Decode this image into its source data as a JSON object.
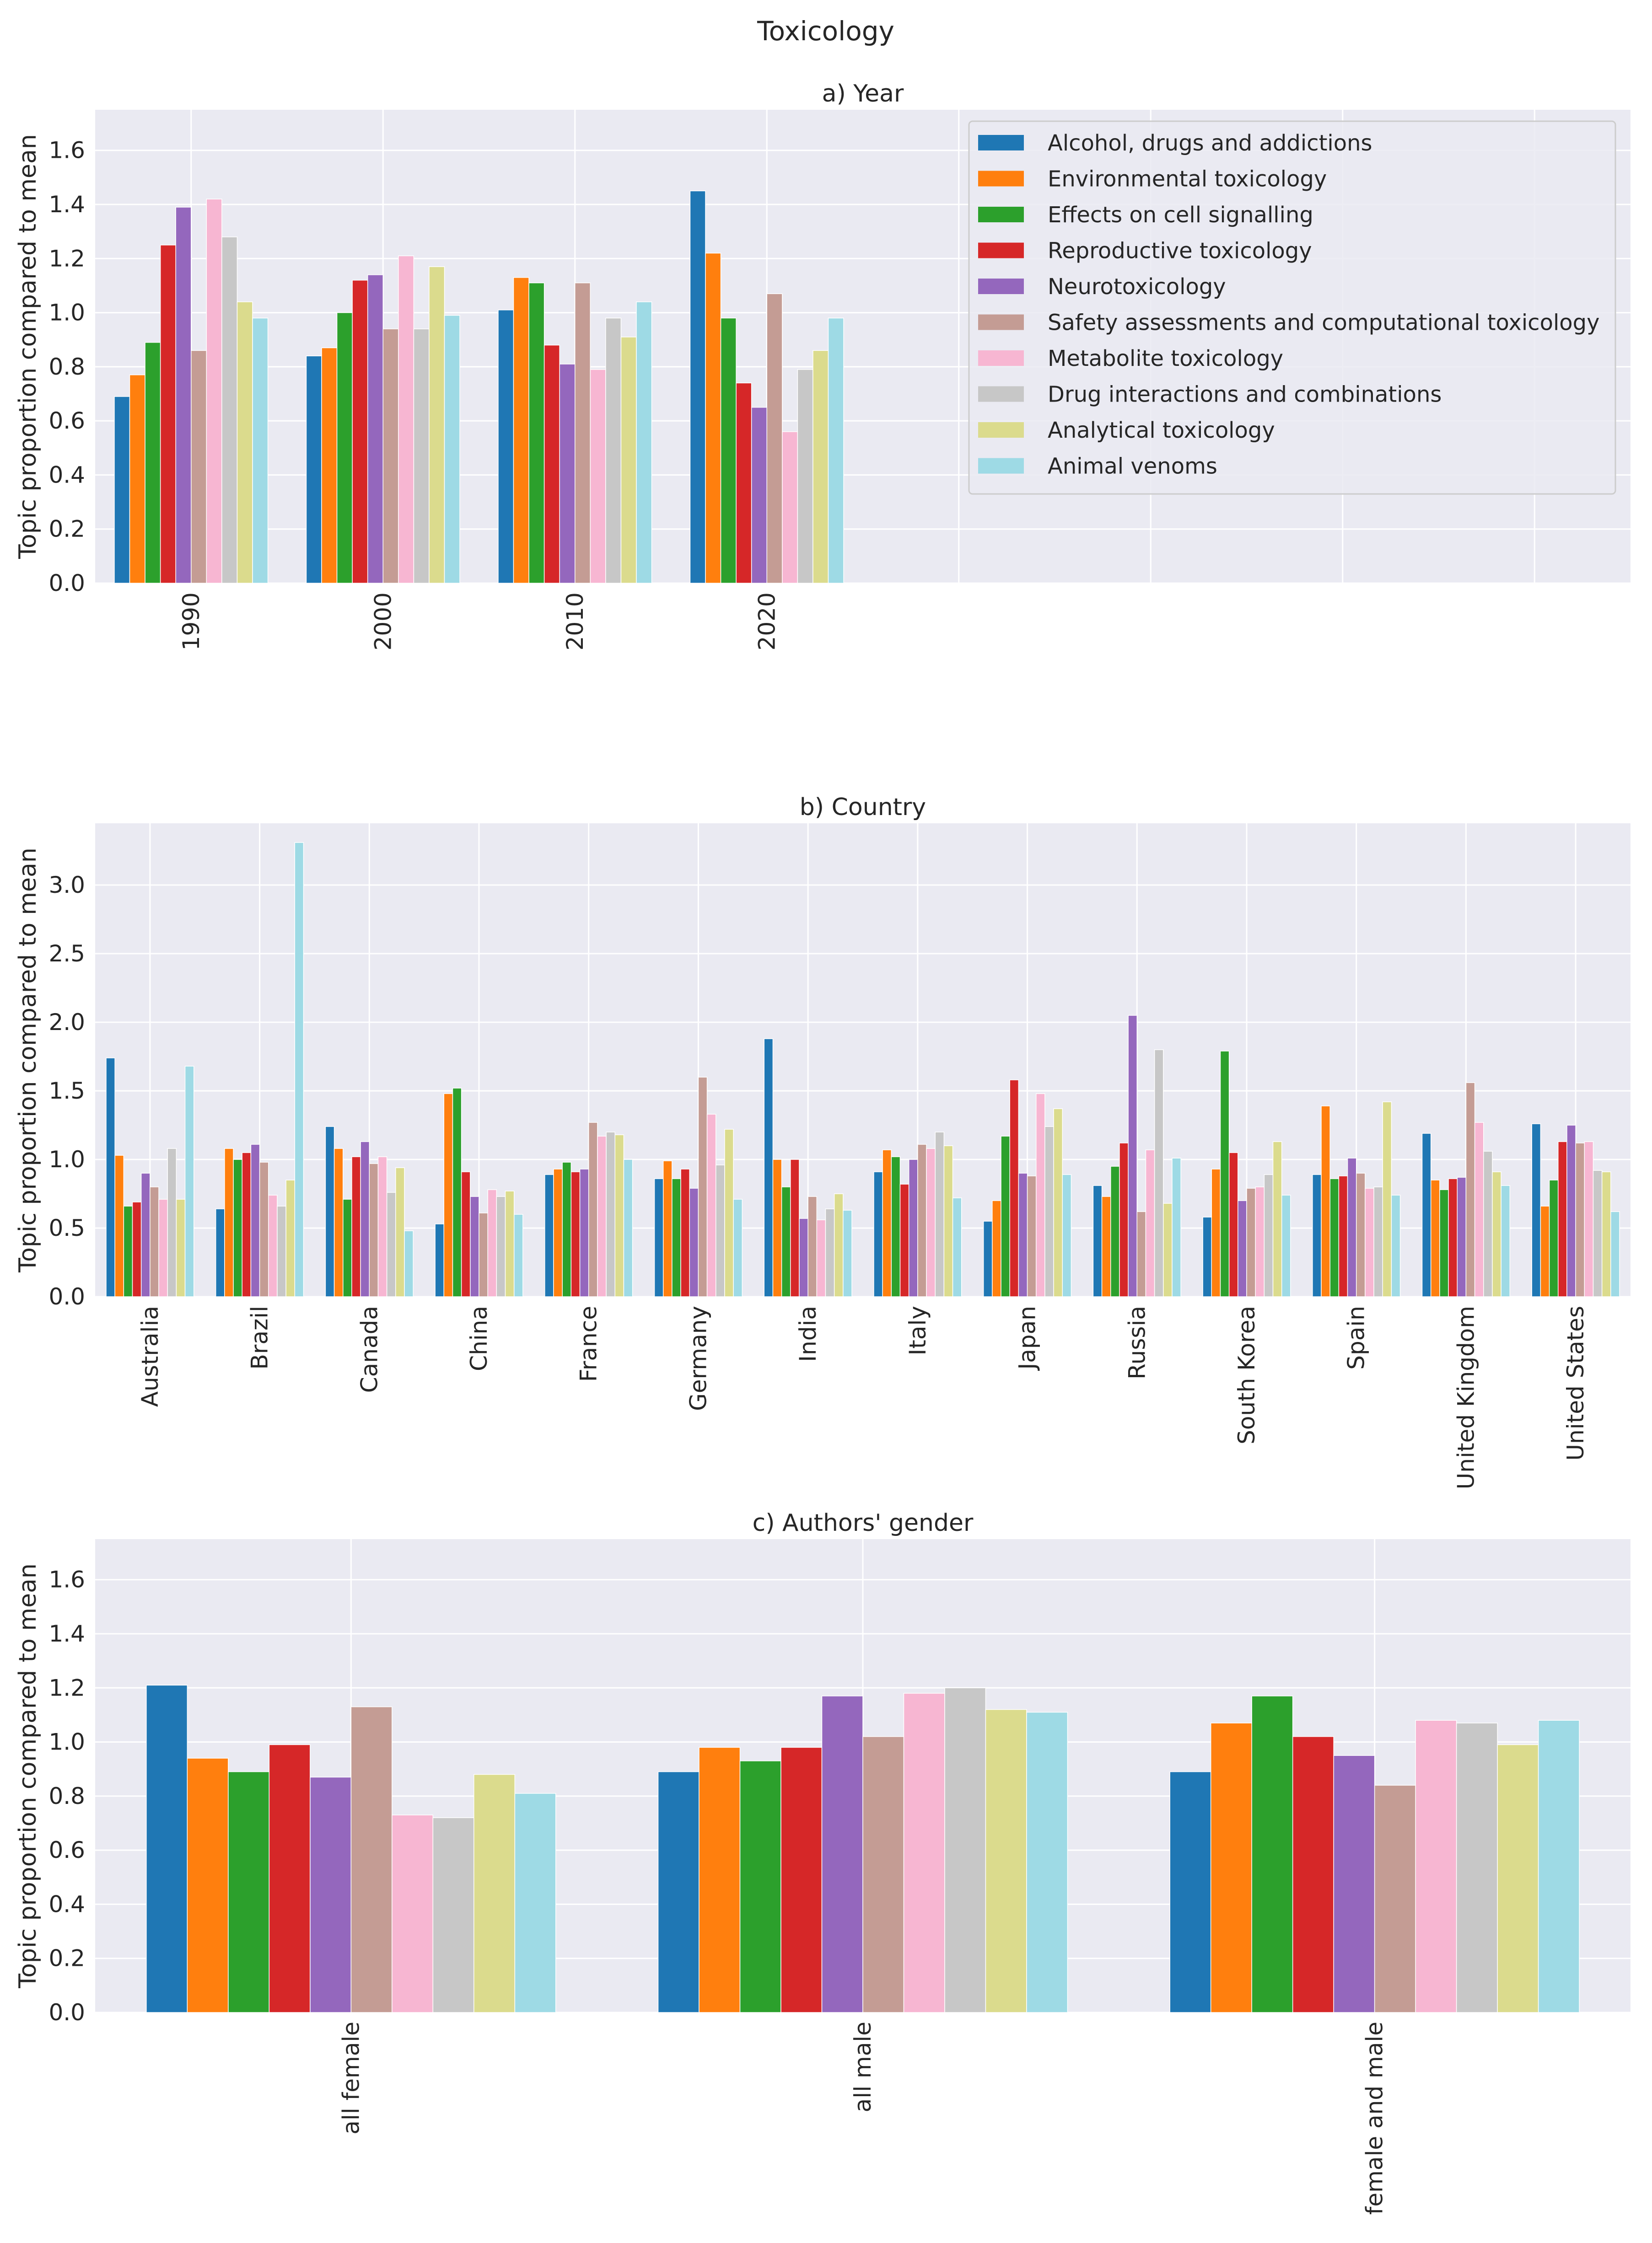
{
  "figure_title": "Toxicology",
  "colors": [
    "#1f77b4",
    "#ff7f0e",
    "#2ca02c",
    "#d62728",
    "#9467bd",
    "#c49c94",
    "#f7b6d2",
    "#c7c7c7",
    "#dbdb8d",
    "#9edae5"
  ],
  "chart_data": [
    {
      "type": "bar",
      "title": "a) Year",
      "ylabel": "Topic proportion compared to mean",
      "xlabel": "",
      "ylim": [
        0,
        1.75
      ],
      "yticks": [
        0.0,
        0.2,
        0.4,
        0.6,
        0.8,
        1.0,
        1.2,
        1.4,
        1.6
      ],
      "ytick_labels": [
        "0.0",
        "0.2",
        "0.4",
        "0.6",
        "0.8",
        "1.0",
        "1.2",
        "1.4",
        "1.6"
      ],
      "categories": [
        "1990",
        "2000",
        "2010",
        "2020"
      ],
      "x_span": 8,
      "legend_position": "top-right",
      "grid": true,
      "series": [
        {
          "name": "Alcohol, drugs and addictions",
          "values": [
            0.69,
            0.84,
            1.01,
            1.45
          ]
        },
        {
          "name": "Environmental toxicology",
          "values": [
            0.77,
            0.87,
            1.13,
            1.22
          ]
        },
        {
          "name": "Effects on cell signalling",
          "values": [
            0.89,
            1.0,
            1.11,
            0.98
          ]
        },
        {
          "name": "Reproductive toxicology",
          "values": [
            1.25,
            1.12,
            0.88,
            0.74
          ]
        },
        {
          "name": "Neurotoxicology",
          "values": [
            1.39,
            1.14,
            0.81,
            0.65
          ]
        },
        {
          "name": "Safety assessments and computational toxicology",
          "values": [
            0.86,
            0.94,
            1.11,
            1.07
          ]
        },
        {
          "name": "Metabolite toxicology",
          "values": [
            1.42,
            1.21,
            0.79,
            0.56
          ]
        },
        {
          "name": "Drug interactions and combinations",
          "values": [
            1.28,
            0.94,
            0.98,
            0.79
          ]
        },
        {
          "name": "Analytical toxicology",
          "values": [
            1.04,
            1.17,
            0.91,
            0.86
          ]
        },
        {
          "name": "Animal venoms",
          "values": [
            0.98,
            0.99,
            1.04,
            0.98
          ]
        }
      ]
    },
    {
      "type": "bar",
      "title": "b) Country",
      "ylabel": "Topic proportion compared to mean",
      "xlabel": "",
      "ylim": [
        0,
        3.45
      ],
      "yticks": [
        0.0,
        0.5,
        1.0,
        1.5,
        2.0,
        2.5,
        3.0
      ],
      "ytick_labels": [
        "0.0",
        "0.5",
        "1.0",
        "1.5",
        "2.0",
        "2.5",
        "3.0"
      ],
      "categories": [
        "Australia",
        "Brazil",
        "Canada",
        "China",
        "France",
        "Germany",
        "India",
        "Italy",
        "Japan",
        "Russia",
        "South Korea",
        "Spain",
        "United Kingdom",
        "United States"
      ],
      "x_span": 14,
      "grid": true,
      "series": [
        {
          "name": "Alcohol, drugs and addictions",
          "values": [
            1.74,
            0.64,
            1.24,
            0.53,
            0.89,
            0.86,
            1.88,
            0.91,
            0.55,
            0.81,
            0.58,
            0.89,
            1.19,
            1.26
          ]
        },
        {
          "name": "Environmental toxicology",
          "values": [
            1.03,
            1.08,
            1.08,
            1.48,
            0.93,
            0.99,
            1.0,
            1.07,
            0.7,
            0.73,
            0.93,
            1.39,
            0.85,
            0.66
          ]
        },
        {
          "name": "Effects on cell signalling",
          "values": [
            0.66,
            1.0,
            0.71,
            1.52,
            0.98,
            0.86,
            0.8,
            1.02,
            1.17,
            0.95,
            1.79,
            0.86,
            0.78,
            0.85
          ]
        },
        {
          "name": "Reproductive toxicology",
          "values": [
            0.69,
            1.05,
            1.02,
            0.91,
            0.91,
            0.93,
            1.0,
            0.82,
            1.58,
            1.12,
            1.05,
            0.88,
            0.86,
            1.13
          ]
        },
        {
          "name": "Neurotoxicology",
          "values": [
            0.9,
            1.11,
            1.13,
            0.73,
            0.93,
            0.79,
            0.57,
            1.0,
            0.9,
            2.05,
            0.7,
            1.01,
            0.87,
            1.25
          ]
        },
        {
          "name": "Safety assessments and computational toxicology",
          "values": [
            0.8,
            0.98,
            0.97,
            0.61,
            1.27,
            1.6,
            0.73,
            1.11,
            0.88,
            0.62,
            0.79,
            0.9,
            1.56,
            1.12
          ]
        },
        {
          "name": "Metabolite toxicology",
          "values": [
            0.71,
            0.74,
            1.02,
            0.78,
            1.17,
            1.33,
            0.56,
            1.08,
            1.48,
            1.07,
            0.8,
            0.79,
            1.27,
            1.13
          ]
        },
        {
          "name": "Drug interactions and combinations",
          "values": [
            1.08,
            0.66,
            0.76,
            0.73,
            1.2,
            0.96,
            0.64,
            1.2,
            1.24,
            1.8,
            0.89,
            0.8,
            1.06,
            0.92
          ]
        },
        {
          "name": "Analytical toxicology",
          "values": [
            0.71,
            0.85,
            0.94,
            0.77,
            1.18,
            1.22,
            0.75,
            1.1,
            1.37,
            0.68,
            1.13,
            1.42,
            0.91,
            0.91
          ]
        },
        {
          "name": "Animal venoms",
          "values": [
            1.68,
            3.31,
            0.48,
            0.6,
            1.0,
            0.71,
            0.63,
            0.72,
            0.89,
            1.01,
            0.74,
            0.74,
            0.81,
            0.62
          ]
        }
      ]
    },
    {
      "type": "bar",
      "title": "c) Authors' gender",
      "ylabel": "Topic proportion compared to mean",
      "xlabel": "",
      "ylim": [
        0,
        1.75
      ],
      "yticks": [
        0.0,
        0.2,
        0.4,
        0.6,
        0.8,
        1.0,
        1.2,
        1.4,
        1.6
      ],
      "ytick_labels": [
        "0.0",
        "0.2",
        "0.4",
        "0.6",
        "0.8",
        "1.0",
        "1.2",
        "1.4",
        "1.6"
      ],
      "categories": [
        "all female",
        "all male",
        "female and male"
      ],
      "x_span": 3,
      "grid": true,
      "series": [
        {
          "name": "Alcohol, drugs and addictions",
          "values": [
            1.21,
            0.89,
            0.89
          ]
        },
        {
          "name": "Environmental toxicology",
          "values": [
            0.94,
            0.98,
            1.07
          ]
        },
        {
          "name": "Effects on cell signalling",
          "values": [
            0.89,
            0.93,
            1.17
          ]
        },
        {
          "name": "Reproductive toxicology",
          "values": [
            0.99,
            0.98,
            1.02
          ]
        },
        {
          "name": "Neurotoxicology",
          "values": [
            0.87,
            1.17,
            0.95
          ]
        },
        {
          "name": "Safety assessments and computational toxicology",
          "values": [
            1.13,
            1.02,
            0.84
          ]
        },
        {
          "name": "Metabolite toxicology",
          "values": [
            0.73,
            1.18,
            1.08
          ]
        },
        {
          "name": "Drug interactions and combinations",
          "values": [
            0.72,
            1.2,
            1.07
          ]
        },
        {
          "name": "Analytical toxicology",
          "values": [
            0.88,
            1.12,
            0.99
          ]
        },
        {
          "name": "Animal venoms",
          "values": [
            0.81,
            1.11,
            1.08
          ]
        }
      ]
    }
  ]
}
